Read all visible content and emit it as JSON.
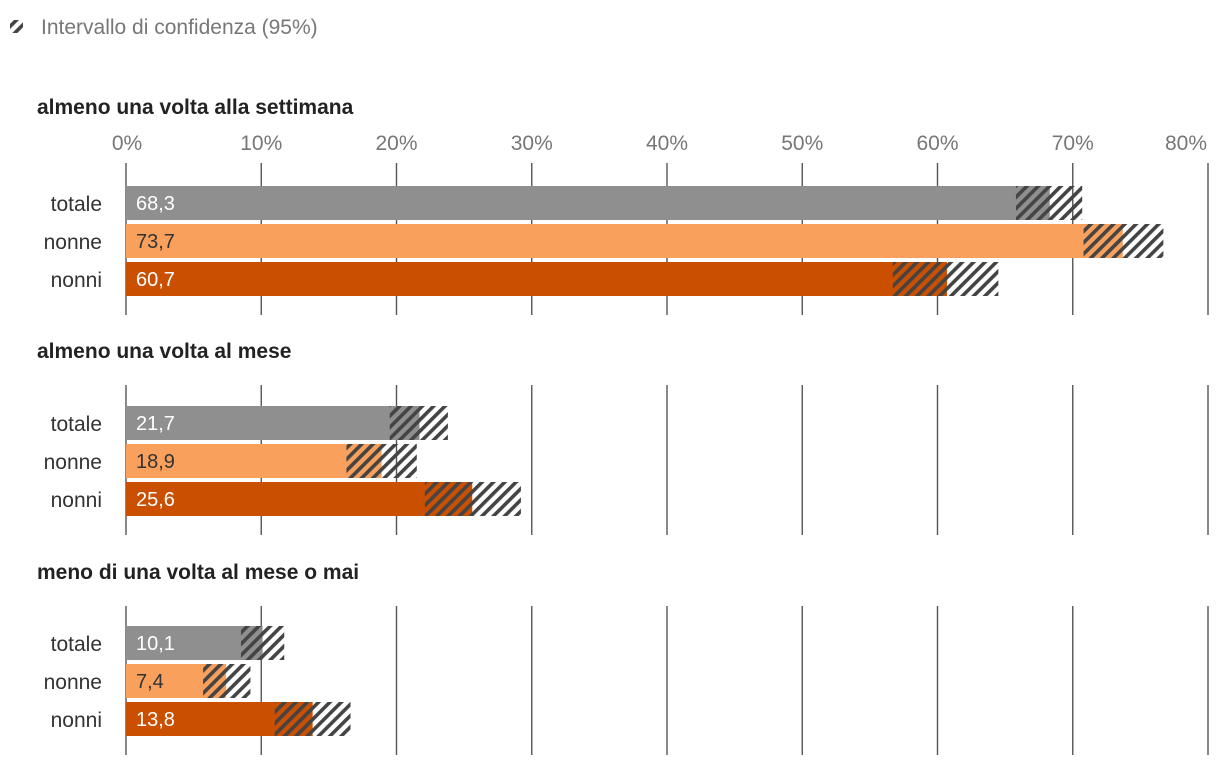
{
  "chart_data": {
    "type": "bar",
    "orientation": "horizontal",
    "legend": {
      "label": "Intervallo di confidenza (95%)",
      "icon": "hatch-icon",
      "placement": "top-left"
    },
    "x_axis": {
      "min": 0,
      "max": 80,
      "ticks": [
        0,
        10,
        20,
        30,
        40,
        50,
        60,
        70,
        80
      ],
      "tick_labels": [
        "0%",
        "10%",
        "20%",
        "30%",
        "40%",
        "50%",
        "60%",
        "70%",
        "80%"
      ]
    },
    "categories": [
      "totale",
      "nonne",
      "nonni"
    ],
    "colors": {
      "totale": "#8f8f8f",
      "nonne": "#f9a05c",
      "nonni": "#cb4f00",
      "grid": "#555555",
      "hatch": "#444444"
    },
    "value_label_colors": {
      "totale": "#ffffff",
      "nonne": "#333333",
      "nonni": "#ffffff"
    },
    "panels": [
      {
        "title": "almeno una volta alla settimana",
        "bars": [
          {
            "category": "totale",
            "value": 68.3,
            "label": "68,3",
            "ci_low": 65.8,
            "ci_high": 70.7
          },
          {
            "category": "nonne",
            "value": 73.7,
            "label": "73,7",
            "ci_low": 70.8,
            "ci_high": 76.7
          },
          {
            "category": "nonni",
            "value": 60.7,
            "label": "60,7",
            "ci_low": 56.7,
            "ci_high": 64.5
          }
        ]
      },
      {
        "title": "almeno una volta al mese",
        "bars": [
          {
            "category": "totale",
            "value": 21.7,
            "label": "21,7",
            "ci_low": 19.5,
            "ci_high": 23.8
          },
          {
            "category": "nonne",
            "value": 18.9,
            "label": "18,9",
            "ci_low": 16.3,
            "ci_high": 21.5
          },
          {
            "category": "nonni",
            "value": 25.6,
            "label": "25,6",
            "ci_low": 22.1,
            "ci_high": 29.2
          }
        ]
      },
      {
        "title": "meno di una volta al mese o mai",
        "bars": [
          {
            "category": "totale",
            "value": 10.1,
            "label": "10,1",
            "ci_low": 8.5,
            "ci_high": 11.7
          },
          {
            "category": "nonne",
            "value": 7.4,
            "label": "7,4",
            "ci_low": 5.7,
            "ci_high": 9.2
          },
          {
            "category": "nonni",
            "value": 13.8,
            "label": "13,8",
            "ci_low": 11.0,
            "ci_high": 16.6
          }
        ]
      }
    ]
  }
}
